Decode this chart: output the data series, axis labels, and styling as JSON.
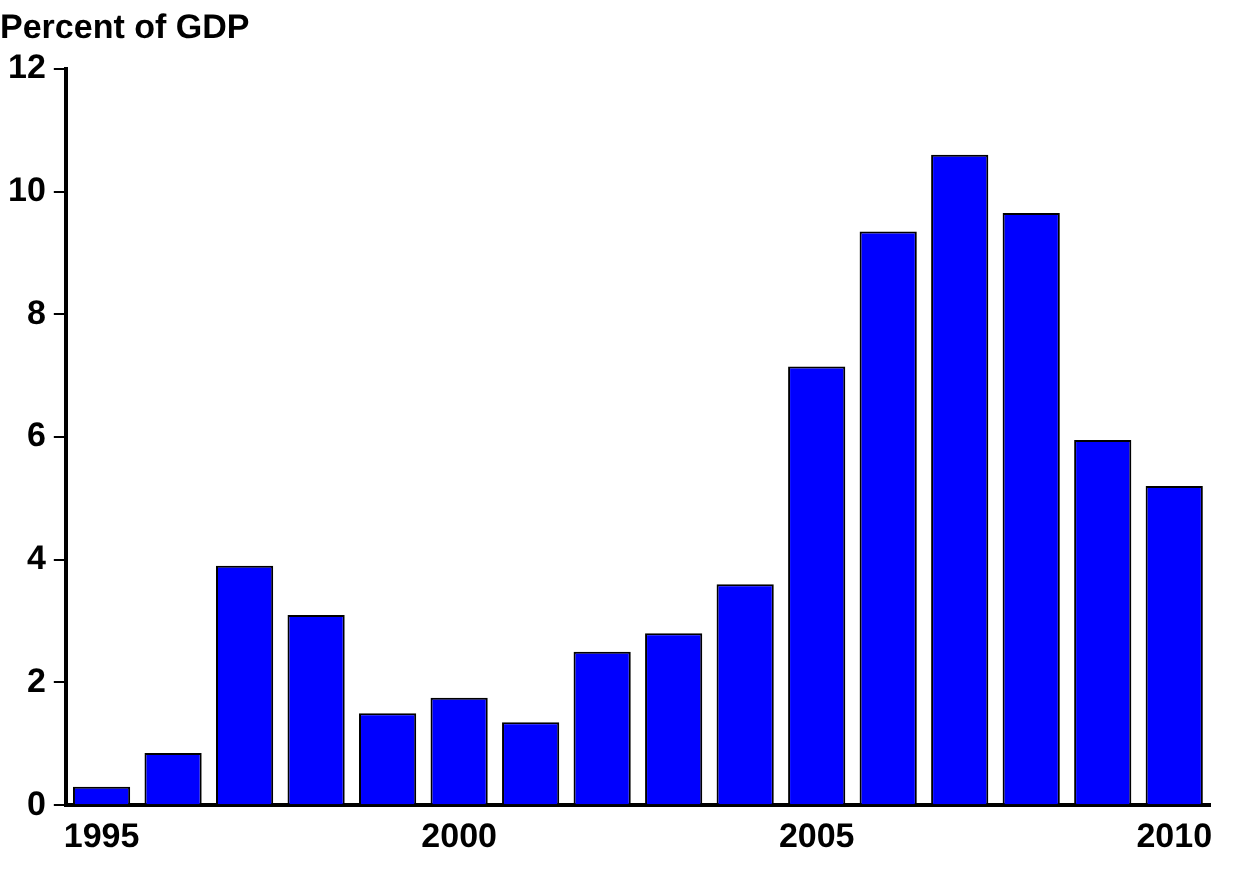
{
  "chart_data": {
    "type": "bar",
    "title": "Percent of GDP",
    "categories": [
      "1995",
      null,
      null,
      null,
      null,
      "2000",
      null,
      null,
      null,
      null,
      "2005",
      null,
      null,
      null,
      null,
      "2010"
    ],
    "values": [
      0.3,
      0.85,
      3.9,
      3.1,
      1.5,
      1.75,
      1.35,
      2.5,
      2.8,
      3.6,
      7.15,
      9.35,
      10.6,
      9.65,
      5.95,
      5.2
    ],
    "color": "#0000ff",
    "ylim": [
      0,
      12
    ],
    "yticks": [
      0,
      2,
      4,
      6,
      8,
      10,
      12
    ],
    "grid": false,
    "legend": false
  }
}
